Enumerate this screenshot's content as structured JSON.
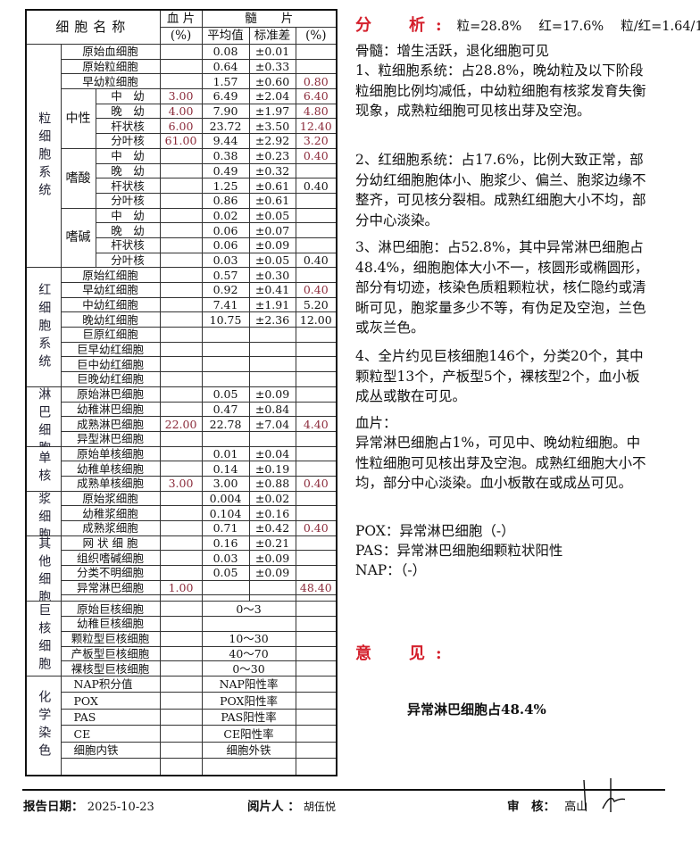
{
  "table": {
    "header": {
      "name": "细胞名称",
      "blood": "血 片",
      "blood_unit": "(%)",
      "marrow": "髓　　片",
      "mean": "平均值",
      "sd": "标准差",
      "marrow_unit": "(%)"
    },
    "groups": [
      {
        "label": "粒细胞系统",
        "has_sub": true,
        "rows": [
          {
            "name": "原始血细胞",
            "mean": "0.08",
            "sd": "±0.01"
          },
          {
            "name": "原始粒细胞",
            "mean": "0.64",
            "sd": "±0.33"
          },
          {
            "name": "早幼粒细胞",
            "mean": "1.57",
            "sd": "±0.60",
            "marrow": "0.80",
            "hl": true
          },
          {
            "sub": "中性",
            "sub_span": 4,
            "name": "中　幼",
            "blood": "3.00",
            "mean": "6.49",
            "sd": "±2.04",
            "marrow": "6.40",
            "hl": true
          },
          {
            "name": "晚　幼",
            "blood": "4.00",
            "mean": "7.90",
            "sd": "±1.97",
            "marrow": "4.80",
            "hl": true
          },
          {
            "name": "杆状核",
            "blood": "6.00",
            "mean": "23.72",
            "sd": "±3.50",
            "marrow": "12.40",
            "hl": true
          },
          {
            "name": "分叶核",
            "blood": "61.00",
            "mean": "9.44",
            "sd": "±2.92",
            "marrow": "3.20",
            "hl": true
          },
          {
            "sub": "嗜酸",
            "sub_span": 4,
            "name": "中　幼",
            "mean": "0.38",
            "sd": "±0.23",
            "marrow": "0.40",
            "hl": true
          },
          {
            "name": "晚　幼",
            "mean": "0.49",
            "sd": "±0.32"
          },
          {
            "name": "杆状核",
            "mean": "1.25",
            "sd": "±0.61",
            "marrow": "0.40"
          },
          {
            "name": "分叶核",
            "mean": "0.86",
            "sd": "±0.61"
          },
          {
            "sub": "嗜碱",
            "sub_span": 4,
            "name": "中　幼",
            "mean": "0.02",
            "sd": "±0.05"
          },
          {
            "name": "晚　幼",
            "mean": "0.06",
            "sd": "±0.07"
          },
          {
            "name": "杆状核",
            "mean": "0.06",
            "sd": "±0.09"
          },
          {
            "name": "分叶核",
            "mean": "0.03",
            "sd": "±0.05",
            "marrow": "0.40"
          }
        ]
      },
      {
        "label": "红细胞系统",
        "rows": [
          {
            "name": "原始红细胞",
            "mean": "0.57",
            "sd": "±0.30"
          },
          {
            "name": "早幼红细胞",
            "mean": "0.92",
            "sd": "±0.41",
            "marrow": "0.40",
            "hl": true
          },
          {
            "name": "中幼红细胞",
            "mean": "7.41",
            "sd": "±1.91",
            "marrow": "5.20"
          },
          {
            "name": "晚幼红细胞",
            "mean": "10.75",
            "sd": "±2.36",
            "marrow": "12.00"
          },
          {
            "name": "巨原红细胞"
          },
          {
            "name": "巨早幼红细胞"
          },
          {
            "name": "巨中幼红细胞"
          },
          {
            "name": "巨晚幼红细胞"
          }
        ]
      },
      {
        "label": "淋巴细胞",
        "rows": [
          {
            "name": "原始淋巴细胞",
            "mean": "0.05",
            "sd": "±0.09"
          },
          {
            "name": "幼稚淋巴细胞",
            "mean": "0.47",
            "sd": "±0.84"
          },
          {
            "name": "成熟淋巴细胞",
            "blood": "22.00",
            "mean": "22.78",
            "sd": "±7.04",
            "marrow": "4.40",
            "hl": true
          },
          {
            "name": "异型淋巴细胞"
          }
        ]
      },
      {
        "label": "单核",
        "rows": [
          {
            "name": "原始单核细胞",
            "mean": "0.01",
            "sd": "±0.04"
          },
          {
            "name": "幼稚单核细胞",
            "mean": "0.14",
            "sd": "±0.19"
          },
          {
            "name": "成熟单核细胞",
            "blood": "3.00",
            "mean": "3.00",
            "sd": "±0.88",
            "marrow": "0.40",
            "hl": true
          }
        ]
      },
      {
        "label": "浆细胞",
        "rows": [
          {
            "name": "原始浆细胞",
            "mean": "0.004",
            "sd": "±0.02"
          },
          {
            "name": "幼稚浆细胞",
            "mean": "0.104",
            "sd": "±0.16"
          },
          {
            "name": "成熟浆细胞",
            "mean": "0.71",
            "sd": "±0.42",
            "marrow": "0.40",
            "hl": true
          }
        ]
      },
      {
        "label": "其他细胞",
        "rows": [
          {
            "name": "网 状 细 胞",
            "mean": "0.16",
            "sd": "±0.21"
          },
          {
            "name": "组织嗜碱细胞",
            "mean": "0.03",
            "sd": "±0.09"
          },
          {
            "name": "分类不明细胞",
            "mean": "0.05",
            "sd": "±0.09"
          },
          {
            "name": "异常淋巴细胞",
            "blood": "1.00",
            "marrow": "48.40",
            "hl": true
          }
        ]
      },
      {
        "label": "巨核细胞",
        "range": true,
        "rows": [
          {
            "name": "原始巨核细胞",
            "range": "0～3"
          },
          {
            "name": "幼稚巨核细胞",
            "range": ""
          },
          {
            "name": "颗粒型巨核细胞",
            "range": "10～30"
          },
          {
            "name": "产板型巨核细胞",
            "range": "40～70"
          },
          {
            "name": "裸核型巨核细胞",
            "range": "0～30"
          }
        ]
      }
    ],
    "chem": {
      "label": "化学染色",
      "rows": [
        [
          "NAP积分值",
          "NAP阳性率"
        ],
        [
          "POX",
          "POX阳性率"
        ],
        [
          "PAS",
          "PAS阳性率"
        ],
        [
          "CE",
          "CE阳性率"
        ],
        [
          "细胞内铁",
          "细胞外铁"
        ],
        [
          "",
          ""
        ]
      ]
    }
  },
  "analysis": {
    "heading": "分　析:",
    "summary": "粒=28.8%　 红=17.6%　 粒/红=1.64/1",
    "marrow": "骨髓：增生活跃，退化细胞可见",
    "p1": "1、粒细胞系统：占28.8%，晚幼粒及以下阶段粒细胞比例均减低，中幼粒细胞有核浆发育失衡现象，成熟粒细胞可见核出芽及空泡。",
    "p2": "2、红细胞系统：占17.6%，比例大致正常，部分幼红细胞胞体小、胞浆少、偏兰、胞浆边缘不整齐，可见核分裂相。成熟红细胞大小不均，部分中心淡染。",
    "p3": "3、淋巴细胞：占52.8%，其中异常淋巴细胞占48.4%，细胞胞体大小不一，核圆形或椭圆形，部分有切迹，核染色质粗颗粒状，核仁隐约或清晰可见，胞浆量多少不等，有伪足及空泡，兰色或灰兰色。",
    "p4": "4、全片约见巨核细胞146个，分类20个，其中颗粒型13个，产板型5个，裸核型2个，血小板成丛或散在可见。",
    "blood_title": "血片：",
    "blood_text": "异常淋巴细胞占1%，可见中、晚幼粒细胞。中性粒细胞可见核出芽及空泡。成熟红细胞大小不均，部分中心淡染。血小板散在或成丛可见。",
    "pox": "POX：异常淋巴细胞（-）",
    "pas": "PAS：异常淋巴细胞细颗粒状阳性",
    "nap": "NAP：（-）"
  },
  "opinion": {
    "heading": "意　见:",
    "text": "异常淋巴细胞占48.4%"
  },
  "footer": {
    "date_label": "报告日期：",
    "date": "2025-10-23",
    "reader_label": "阅片人 ：",
    "reader": "胡伍悦",
    "review_label": "审　核：",
    "reviewer": "高山"
  },
  "colors": {
    "heading_red": "#d4202c",
    "value_red": "#8b2a3a"
  }
}
